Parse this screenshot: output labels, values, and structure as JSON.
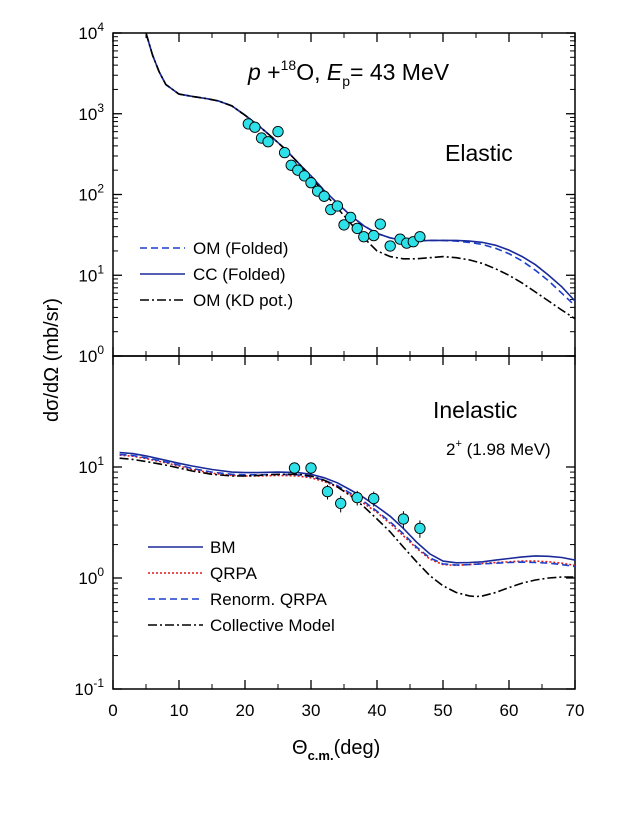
{
  "figure": {
    "ylabel": "dσ/dΩ (mb/sr)",
    "xlabel_main": "Θ",
    "xlabel_sub": "c.m.",
    "xlabel_unit": "(deg)"
  },
  "colors": {
    "data_marker": "#2ee0e8",
    "om_folded": "#1a3fcc",
    "cc_folded": "#1a2a99",
    "kd": "#000000",
    "bm": "#1a2a99",
    "qrpa": "#e01818",
    "renorm_qrpa": "#1a3fcc",
    "collective": "#000000"
  },
  "chart_data": [
    {
      "type": "line",
      "panel": "top",
      "title_parts": {
        "p": "p",
        "plus": " +",
        "mass": "18",
        "elem": "O, ",
        "E": "E",
        "Esub": "p",
        "rest": "= 43 MeV"
      },
      "label": "Elastic",
      "xlim": [
        0,
        70
      ],
      "ylim": [
        1,
        10000
      ],
      "yscale": "log",
      "xticks": [
        0,
        10,
        20,
        30,
        40,
        50,
        60,
        70
      ],
      "yticks": [
        {
          "value": 1,
          "base": "10",
          "exp": "0"
        },
        {
          "value": 10,
          "base": "10",
          "exp": "1"
        },
        {
          "value": 100,
          "base": "10",
          "exp": "2"
        },
        {
          "value": 1000,
          "base": "10",
          "exp": "3"
        },
        {
          "value": 10000,
          "base": "10",
          "exp": "4"
        }
      ],
      "legend_position": "bottom-left",
      "series": [
        {
          "name": "OM (Folded)",
          "style": "dashed",
          "color": "#1a3fcc",
          "x": [
            5,
            6,
            7,
            8,
            10,
            12,
            14,
            16,
            18,
            20,
            22,
            24,
            26,
            28,
            30,
            32,
            34,
            36,
            38,
            40,
            42,
            44,
            46,
            48,
            50,
            52,
            54,
            56,
            58,
            60,
            62,
            64,
            66,
            68,
            70
          ],
          "y": [
            10000,
            5300,
            3300,
            2300,
            1750,
            1640,
            1550,
            1440,
            1250,
            960,
            720,
            520,
            370,
            250,
            170,
            112,
            78,
            55,
            41,
            33,
            29,
            27,
            26.5,
            27,
            27,
            26.5,
            25.5,
            24,
            21.5,
            18.5,
            15,
            11.5,
            8.5,
            6,
            4.2
          ]
        },
        {
          "name": "CC (Folded)",
          "style": "solid",
          "color": "#1a2a99",
          "x": [
            5,
            6,
            7,
            8,
            10,
            12,
            14,
            16,
            18,
            20,
            22,
            24,
            26,
            28,
            30,
            32,
            34,
            36,
            38,
            40,
            42,
            44,
            46,
            48,
            50,
            52,
            54,
            56,
            58,
            60,
            62,
            64,
            66,
            68,
            70
          ],
          "y": [
            10000,
            5300,
            3300,
            2300,
            1750,
            1640,
            1550,
            1440,
            1250,
            960,
            720,
            520,
            370,
            250,
            170,
            112,
            78,
            55,
            41,
            33,
            29,
            27,
            26.5,
            27,
            27,
            27,
            26.5,
            25.5,
            23.5,
            20.5,
            17,
            13.5,
            10,
            7.2,
            4.8
          ]
        },
        {
          "name": "OM (KD pot.)",
          "style": "dashdot",
          "color": "#000000",
          "x": [
            5,
            6,
            7,
            8,
            10,
            12,
            14,
            16,
            18,
            20,
            22,
            24,
            26,
            28,
            30,
            32,
            34,
            36,
            38,
            40,
            42,
            44,
            46,
            48,
            50,
            52,
            54,
            56,
            58,
            60,
            62,
            64,
            66,
            68,
            70
          ],
          "y": [
            10000,
            5300,
            3300,
            2300,
            1750,
            1640,
            1550,
            1440,
            1250,
            960,
            720,
            520,
            370,
            250,
            165,
            105,
            68,
            44,
            29,
            20,
            17,
            16,
            16,
            16.5,
            17,
            16.5,
            15.5,
            14,
            12,
            10,
            8,
            6.2,
            4.8,
            3.7,
            2.9
          ]
        }
      ],
      "points": {
        "x": [
          20.5,
          21.5,
          22.5,
          23.5,
          25.0,
          26.0,
          27.0,
          28.0,
          29.0,
          30.0,
          31.0,
          32.0,
          33.0,
          34.0,
          35.0,
          36.0,
          37.0,
          38.0,
          39.5,
          40.5,
          42.0,
          43.5,
          44.5,
          45.5,
          46.5
        ],
        "y": [
          750,
          680,
          500,
          450,
          600,
          330,
          230,
          200,
          170,
          140,
          110,
          95,
          65,
          72,
          42,
          52,
          38,
          30,
          31,
          43,
          23,
          28,
          25,
          26,
          30
        ]
      }
    },
    {
      "type": "line",
      "panel": "bottom",
      "label": "Inelastic",
      "state_main": "2",
      "state_sup": "+",
      "state_rest": " (1.98 MeV)",
      "xlim": [
        0,
        70
      ],
      "ylim": [
        0.1,
        100
      ],
      "yscale": "log",
      "xticks": [
        0,
        10,
        20,
        30,
        40,
        50,
        60,
        70
      ],
      "yticks": [
        {
          "value": 0.1,
          "base": "10",
          "exp": "-1"
        },
        {
          "value": 1,
          "base": "10",
          "exp": "0"
        },
        {
          "value": 10,
          "base": "10",
          "exp": "1"
        }
      ],
      "legend_position": "bottom-left",
      "series": [
        {
          "name": "BM",
          "style": "solid",
          "color": "#1a2a99",
          "x": [
            1,
            3,
            5,
            8,
            10,
            12,
            15,
            18,
            20,
            22,
            25,
            28,
            30,
            32,
            34,
            36,
            38,
            40,
            42,
            44,
            46,
            48,
            50,
            52,
            54,
            56,
            58,
            60,
            62,
            64,
            66,
            68,
            70
          ],
          "y": [
            13.5,
            13.2,
            12.6,
            11.5,
            10.8,
            10.2,
            9.5,
            9.0,
            8.9,
            8.9,
            9.0,
            8.9,
            8.6,
            8.0,
            7.2,
            6.2,
            5.3,
            4.4,
            3.6,
            2.8,
            2.1,
            1.65,
            1.42,
            1.37,
            1.38,
            1.4,
            1.45,
            1.5,
            1.55,
            1.58,
            1.57,
            1.53,
            1.45
          ]
        },
        {
          "name": "QRPA",
          "style": "dotted",
          "color": "#e01818",
          "x": [
            1,
            3,
            5,
            8,
            10,
            12,
            15,
            18,
            20,
            22,
            25,
            28,
            30,
            32,
            34,
            36,
            38,
            40,
            42,
            44,
            46,
            48,
            50,
            52,
            54,
            56,
            58,
            60,
            62,
            64,
            66,
            68,
            70
          ],
          "y": [
            12.8,
            12.5,
            11.9,
            10.9,
            10.2,
            9.5,
            8.8,
            8.4,
            8.3,
            8.3,
            8.4,
            8.3,
            8.0,
            7.4,
            6.6,
            5.6,
            4.7,
            3.9,
            3.1,
            2.4,
            1.85,
            1.48,
            1.32,
            1.3,
            1.32,
            1.35,
            1.38,
            1.4,
            1.42,
            1.42,
            1.4,
            1.36,
            1.3
          ]
        },
        {
          "name": "Renorm. QRPA",
          "style": "dashed",
          "color": "#1a3fcc",
          "x": [
            1,
            3,
            5,
            8,
            10,
            12,
            15,
            18,
            20,
            22,
            25,
            28,
            30,
            32,
            34,
            36,
            38,
            40,
            42,
            44,
            46,
            48,
            50,
            52,
            54,
            56,
            58,
            60,
            62,
            64,
            66,
            68,
            70
          ],
          "y": [
            13.0,
            12.7,
            12.1,
            11.1,
            10.4,
            9.7,
            9.0,
            8.6,
            8.5,
            8.5,
            8.6,
            8.5,
            8.2,
            7.6,
            6.8,
            5.8,
            4.9,
            4.0,
            3.2,
            2.5,
            1.9,
            1.52,
            1.34,
            1.31,
            1.32,
            1.34,
            1.36,
            1.38,
            1.39,
            1.38,
            1.36,
            1.32,
            1.27
          ]
        },
        {
          "name": "Collective Model",
          "style": "dashdot",
          "color": "#000000",
          "x": [
            1,
            3,
            5,
            8,
            10,
            12,
            15,
            18,
            20,
            22,
            25,
            28,
            30,
            32,
            34,
            36,
            38,
            40,
            42,
            44,
            46,
            48,
            50,
            52,
            54,
            55,
            56,
            58,
            60,
            62,
            64,
            66,
            68,
            70
          ],
          "y": [
            12.0,
            11.7,
            11.2,
            10.4,
            9.8,
            9.2,
            8.6,
            8.3,
            8.3,
            8.4,
            8.6,
            8.6,
            8.3,
            7.6,
            6.6,
            5.5,
            4.4,
            3.4,
            2.6,
            1.9,
            1.4,
            1.05,
            0.85,
            0.74,
            0.69,
            0.68,
            0.69,
            0.74,
            0.82,
            0.9,
            0.96,
            1.0,
            1.02,
            1.02
          ]
        }
      ],
      "points": {
        "x": [
          27.5,
          30.0,
          32.5,
          34.5,
          37.0,
          39.5,
          44.0,
          46.5
        ],
        "y": [
          9.8,
          9.8,
          6.0,
          4.7,
          5.3,
          5.2,
          3.4,
          2.8
        ],
        "yerr": [
          1.2,
          1.2,
          0.9,
          0.8,
          0.8,
          0.8,
          0.6,
          0.5
        ],
        "xerr": [
          0.8,
          0.8,
          0.8,
          0.8,
          0.8,
          0.8,
          0.8,
          0.8
        ]
      }
    }
  ]
}
